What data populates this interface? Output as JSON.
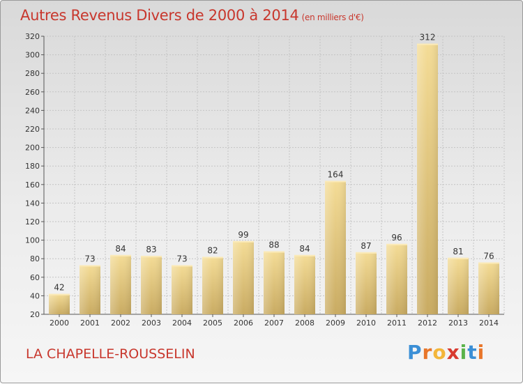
{
  "title": "Autres Revenus Divers de 2000 à 2014",
  "title_unit": "(en milliers d'€)",
  "commune": "LA CHAPELLE-ROUSSELIN",
  "logo": {
    "letters": [
      "P",
      "r",
      "o",
      "x",
      "i",
      "t",
      "i"
    ],
    "colors": [
      "#3b8fd6",
      "#e8762a",
      "#f3b63a",
      "#d83a2f",
      "#5bb34a",
      "#3b8fd6",
      "#e8762a"
    ]
  },
  "chart_data": {
    "type": "bar",
    "categories": [
      "2000",
      "2001",
      "2002",
      "2003",
      "2004",
      "2005",
      "2006",
      "2007",
      "2008",
      "2009",
      "2010",
      "2011",
      "2012",
      "2013",
      "2014"
    ],
    "values": [
      42,
      73,
      84,
      83,
      73,
      82,
      99,
      88,
      84,
      164,
      87,
      96,
      312,
      81,
      76
    ],
    "ylim": [
      20,
      320
    ],
    "yticks": [
      20,
      40,
      60,
      80,
      100,
      120,
      140,
      160,
      180,
      200,
      220,
      240,
      260,
      280,
      300,
      320
    ],
    "grid": true,
    "bar_color": "#e2c679"
  }
}
